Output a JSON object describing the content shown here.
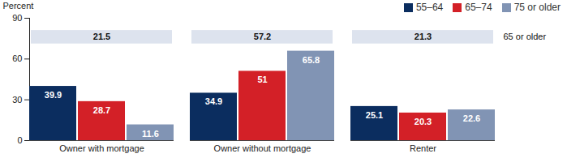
{
  "chart_data": {
    "type": "bar",
    "y_label": "Percent",
    "categories": [
      "Owner with mortgage",
      "Owner without mortgage",
      "Renter"
    ],
    "series": [
      {
        "name": "55–64",
        "color": "#0b2d5f",
        "values": [
          39.9,
          34.9,
          25.1
        ]
      },
      {
        "name": "65–74",
        "color": "#d32027",
        "values": [
          28.7,
          51.0,
          20.3
        ]
      },
      {
        "name": "75 or older",
        "color": "#8194b4",
        "values": [
          11.6,
          65.8,
          22.6
        ]
      },
      {
        "name": "65 or older",
        "type": "annotation",
        "color": "#dde3ee",
        "values": [
          21.5,
          57.2,
          21.3
        ]
      }
    ],
    "ylim": [
      0,
      90
    ],
    "yticks": [
      0,
      30,
      60,
      90
    ],
    "data_labels": true,
    "legend": "top-right",
    "grid": false
  }
}
